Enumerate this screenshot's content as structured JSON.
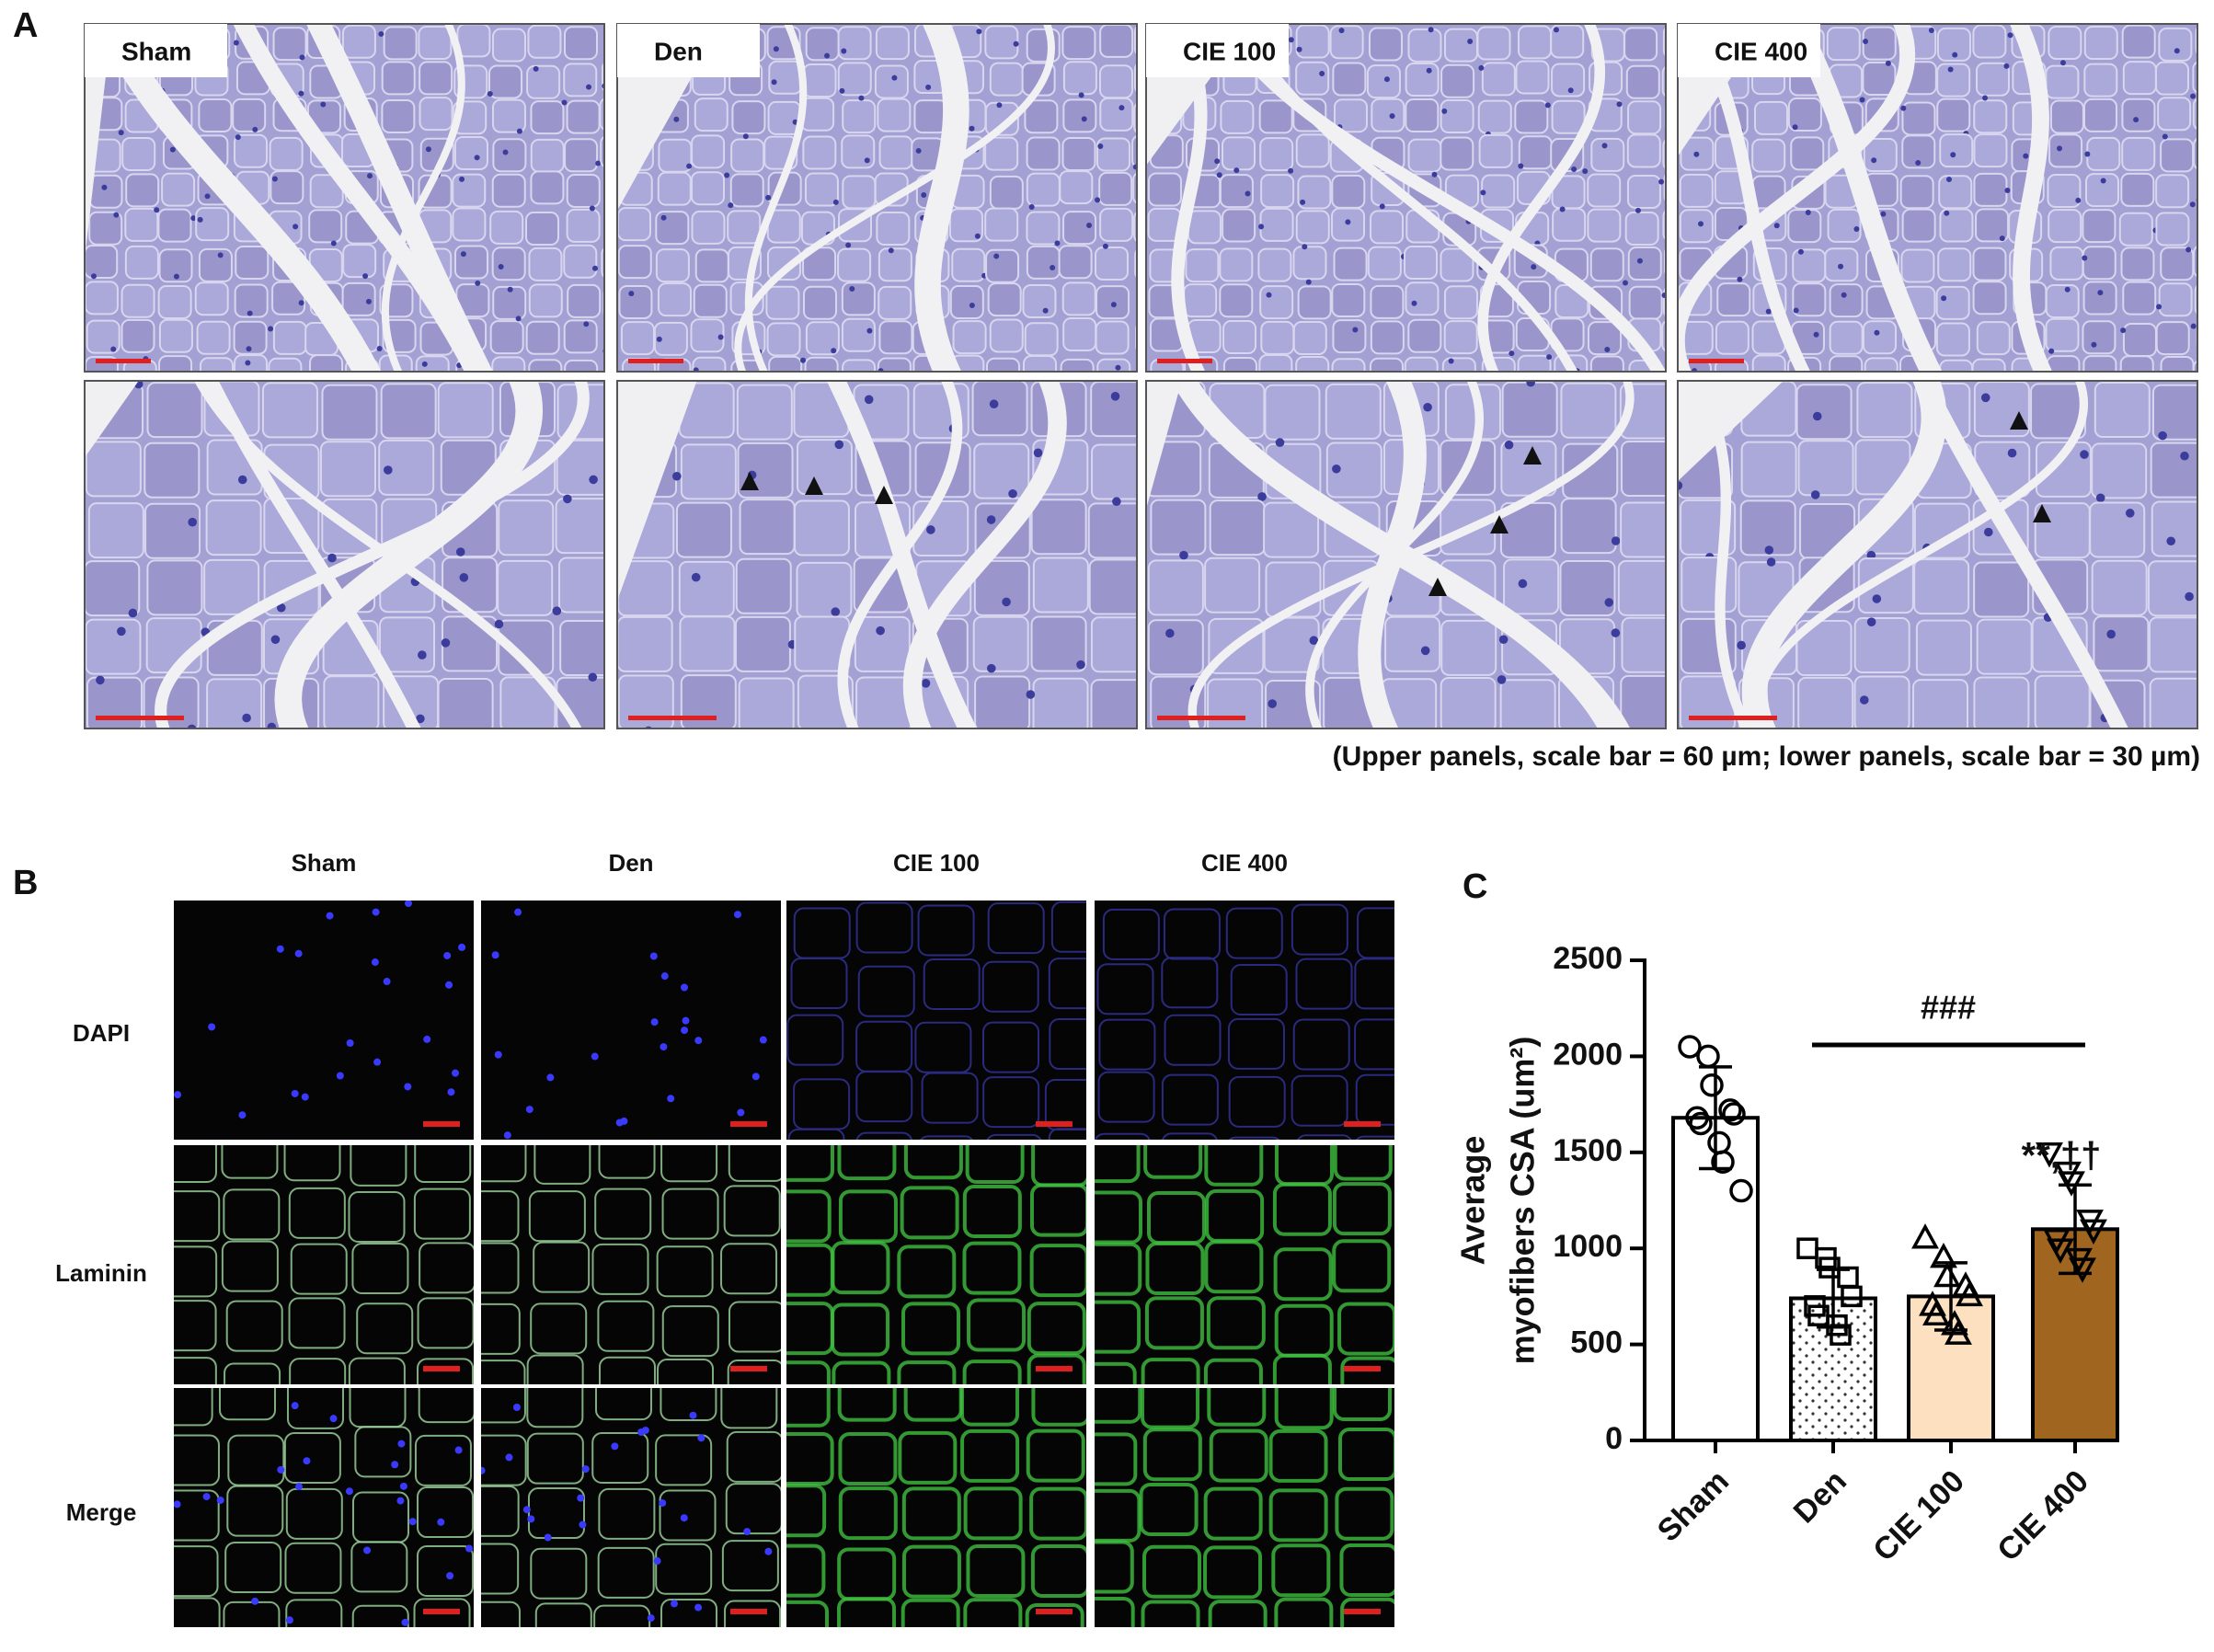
{
  "panel_a": {
    "label": "A",
    "groups": [
      "Sham",
      "Den",
      "CIE 100",
      "CIE 400"
    ],
    "caption": "(Upper panels, scale bar = 60 µm; lower panels, scale bar = 30 µm)"
  },
  "panel_b": {
    "label": "B",
    "groups": [
      "Sham",
      "Den",
      "CIE 100",
      "CIE 400"
    ],
    "rows": [
      "DAPI",
      "Laminin",
      "Merge"
    ]
  },
  "panel_c": {
    "label": "C"
  },
  "chart_data": {
    "type": "bar",
    "categories": [
      "Sham",
      "Den",
      "CIE 100",
      "CIE 400"
    ],
    "values": [
      1680,
      740,
      750,
      1100
    ],
    "errors": [
      265,
      150,
      175,
      230
    ],
    "fills": [
      "#ffffff",
      "dots",
      "#fde0c0",
      "#a0651e"
    ],
    "markers": [
      "circle",
      "square",
      "triangle-up",
      "triangle-down"
    ],
    "points": [
      [
        2050,
        2000,
        1850,
        1720,
        1700,
        1680,
        1650,
        1550,
        1450,
        1300
      ],
      [
        1000,
        950,
        900,
        850,
        750,
        700,
        650,
        600,
        550
      ],
      [
        1050,
        950,
        850,
        800,
        750,
        700,
        650,
        600,
        550
      ],
      [
        1500,
        1400,
        1350,
        1150,
        1100,
        1050,
        1000,
        950,
        900
      ]
    ],
    "ylabel": [
      "Average",
      "myofibers CSA (um²)"
    ],
    "ylim": [
      0,
      2500
    ],
    "yticks": [
      0,
      500,
      1000,
      1500,
      2000,
      2500
    ],
    "annotations": [
      "###",
      "**,††"
    ]
  }
}
